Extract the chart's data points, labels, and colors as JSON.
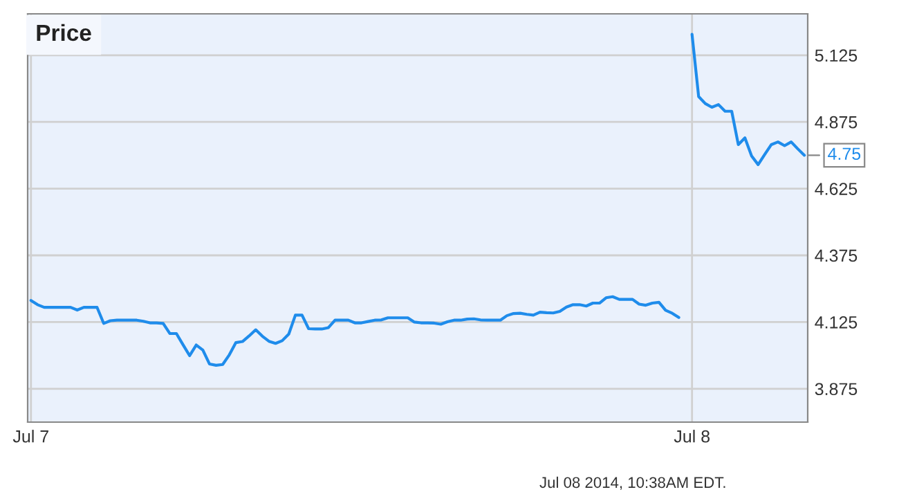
{
  "chart_data": {
    "type": "line",
    "title": "Price",
    "categories": [
      "Jul 7",
      null,
      null,
      null,
      null,
      null,
      null,
      null,
      null,
      null,
      null,
      null,
      null,
      null,
      null,
      null,
      null,
      null,
      null,
      null,
      null,
      null,
      null,
      null,
      null,
      null,
      null,
      null,
      null,
      null,
      null,
      null,
      null,
      null,
      null,
      null,
      null,
      null,
      null,
      null,
      null,
      null,
      null,
      null,
      null,
      null,
      null,
      null,
      null,
      null,
      null,
      null,
      null,
      null,
      null,
      null,
      null,
      null,
      null,
      null,
      null,
      null,
      null,
      null,
      null,
      null,
      null,
      null,
      null,
      null,
      null,
      null,
      null,
      null,
      null,
      null,
      null,
      null,
      null,
      null,
      null,
      null,
      null,
      null,
      null,
      null,
      null,
      null,
      null,
      null,
      null,
      null,
      null,
      null,
      null,
      null,
      null,
      null,
      null,
      null,
      "Jul 8",
      null,
      null,
      null,
      null,
      null,
      null,
      null,
      null,
      null,
      null,
      null,
      null,
      null,
      null,
      null,
      null,
      null
    ],
    "series": [
      {
        "color": "#1f8ceb",
        "values": [
          4.206,
          4.19,
          4.18,
          4.18,
          4.18,
          4.18,
          4.18,
          4.17,
          4.18,
          4.18,
          4.18,
          4.12,
          4.13,
          4.132,
          4.132,
          4.132,
          4.132,
          4.128,
          4.122,
          4.122,
          4.12,
          4.082,
          4.082,
          4.04,
          3.999,
          4.039,
          4.02,
          3.968,
          3.963,
          3.966,
          4.002,
          4.048,
          4.052,
          4.073,
          4.096,
          4.072,
          4.053,
          4.045,
          4.055,
          4.08,
          4.151,
          4.151,
          4.1,
          4.099,
          4.099,
          4.104,
          4.132,
          4.132,
          4.132,
          4.122,
          4.122,
          4.127,
          4.132,
          4.133,
          4.141,
          4.141,
          4.141,
          4.141,
          4.125,
          4.122,
          4.122,
          4.121,
          4.117,
          4.126,
          4.132,
          4.132,
          4.136,
          4.137,
          4.133,
          4.132,
          4.132,
          4.132,
          4.149,
          4.157,
          4.158,
          4.154,
          4.151,
          4.162,
          4.16,
          4.159,
          4.165,
          4.181,
          4.19,
          4.19,
          4.185,
          4.196,
          4.196,
          4.216,
          4.22,
          4.21,
          4.21,
          4.21,
          4.192,
          4.188,
          4.196,
          4.199,
          4.169,
          4.158,
          4.142,
          null,
          5.203,
          4.97,
          4.944,
          4.93,
          4.94,
          4.915,
          4.915,
          4.79,
          4.815,
          4.748,
          4.715,
          4.753,
          4.79,
          4.8,
          4.786,
          4.8,
          4.774,
          4.75
        ],
        "value_labels": [
          null,
          null,
          null,
          null,
          null,
          null,
          null,
          null,
          null,
          null,
          null,
          null,
          null,
          null,
          null,
          null,
          null,
          null,
          null,
          null,
          null,
          null,
          null,
          null,
          null,
          null,
          null,
          null,
          null,
          null,
          null,
          null,
          null,
          null,
          null,
          null,
          null,
          null,
          null,
          null,
          null,
          null,
          null,
          null,
          null,
          null,
          null,
          null,
          null,
          null,
          null,
          null,
          null,
          null,
          null,
          null,
          null,
          null,
          null,
          null,
          null,
          null,
          null,
          null,
          null,
          null,
          null,
          null,
          null,
          null,
          null,
          null,
          null,
          null,
          null,
          null,
          null,
          null,
          null,
          null,
          null,
          null,
          null,
          null,
          null,
          null,
          null,
          null,
          null,
          null,
          null,
          null,
          null,
          null,
          null,
          null,
          null,
          null,
          null,
          null,
          null,
          null,
          null,
          null,
          null,
          null,
          null,
          null,
          null,
          null,
          null,
          null,
          null,
          null,
          null,
          null,
          null,
          "4.75"
        ]
      }
    ],
    "ylim": [
      3.75,
      5.28
    ],
    "yticks": [
      3.875,
      4.125,
      4.375,
      4.625,
      4.875,
      5.125
    ],
    "grid": true,
    "line_style": "solid",
    "marker": "none",
    "annotations": [
      "Jul 08 2014, 10:38AM EDT."
    ]
  }
}
